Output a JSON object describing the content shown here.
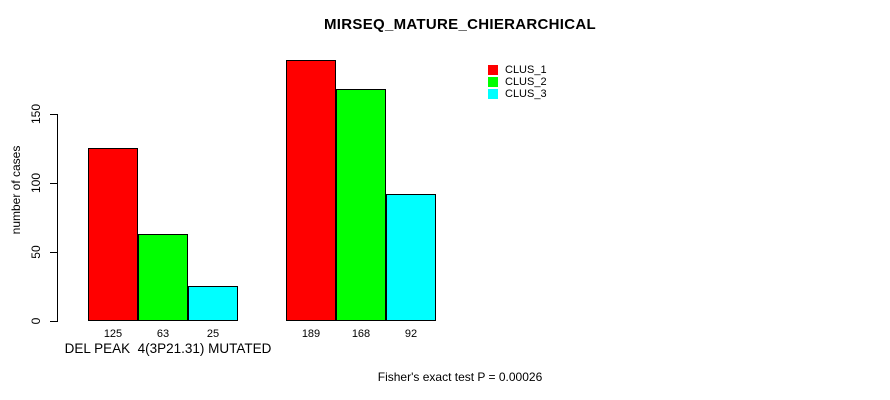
{
  "chart_data": {
    "type": "bar",
    "title": "MIRSEQ_MATURE_CHIERARCHICAL",
    "ylabel": "number of cases",
    "xlabel": "",
    "group_label": "DEL PEAK  4(3P21.31) MUTATED",
    "annotation": "Fisher's exact test P = 0.00026",
    "categories": [
      "DEL PEAK  4(3P21.31) MUTATED",
      ""
    ],
    "series": [
      {
        "name": "CLUS_1",
        "color": "#ff0000",
        "values": [
          125,
          189
        ]
      },
      {
        "name": "CLUS_2",
        "color": "#00ff00",
        "values": [
          63,
          168
        ]
      },
      {
        "name": "CLUS_3",
        "color": "#00ffff",
        "values": [
          25,
          92
        ]
      }
    ],
    "yticks": [
      0,
      50,
      100,
      150
    ],
    "ylim": [
      0,
      195
    ],
    "bar_value_labels": true,
    "grid": false,
    "legend_position": "top-right",
    "text_color": "#000000",
    "background_color": "#ffffff"
  }
}
